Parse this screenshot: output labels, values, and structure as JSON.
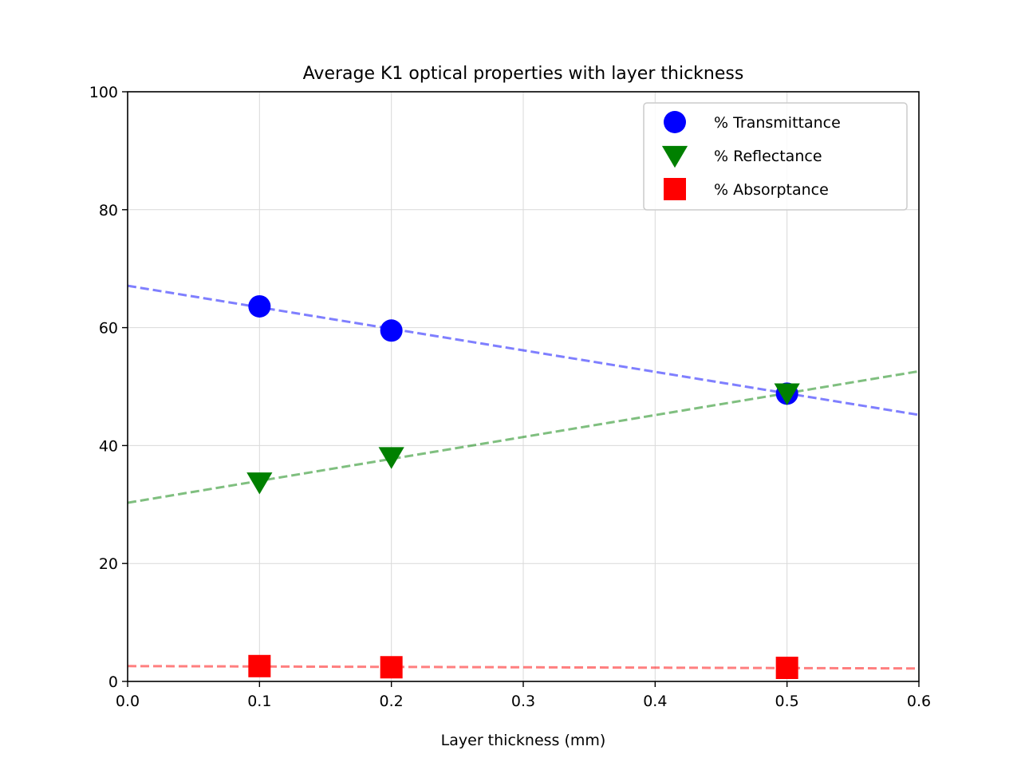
{
  "chart_data": {
    "type": "scatter",
    "title": "Average K1 optical properties with layer thickness",
    "xlabel": "Layer thickness (mm)",
    "ylabel": "",
    "xlim": [
      0.0,
      0.6
    ],
    "ylim": [
      0,
      100
    ],
    "xticks": [
      "0.0",
      "0.1",
      "0.2",
      "0.3",
      "0.4",
      "0.5",
      "0.6"
    ],
    "yticks": [
      "0",
      "20",
      "40",
      "60",
      "80",
      "100"
    ],
    "grid": true,
    "legend_position": "top-right",
    "series": [
      {
        "name": "% Transmittance",
        "marker": "circle",
        "color": "#0000ff",
        "points": [
          {
            "x": 0.1,
            "y": 63.6
          },
          {
            "x": 0.2,
            "y": 59.5
          },
          {
            "x": 0.5,
            "y": 48.8
          }
        ],
        "fit": {
          "style": "dashed",
          "y_at_x0": 67.1,
          "y_at_x06": 45.2
        }
      },
      {
        "name": "% Reflectance",
        "marker": "triangle-down",
        "color": "#008000",
        "points": [
          {
            "x": 0.1,
            "y": 33.8
          },
          {
            "x": 0.2,
            "y": 38.1
          },
          {
            "x": 0.5,
            "y": 48.9
          }
        ],
        "fit": {
          "style": "dashed",
          "y_at_x0": 30.3,
          "y_at_x06": 52.6
        }
      },
      {
        "name": "% Absorptance",
        "marker": "square",
        "color": "#ff0000",
        "points": [
          {
            "x": 0.1,
            "y": 2.6
          },
          {
            "x": 0.2,
            "y": 2.4
          },
          {
            "x": 0.5,
            "y": 2.3
          }
        ],
        "fit": {
          "style": "dashed",
          "y_at_x0": 2.6,
          "y_at_x06": 2.2
        }
      }
    ]
  }
}
